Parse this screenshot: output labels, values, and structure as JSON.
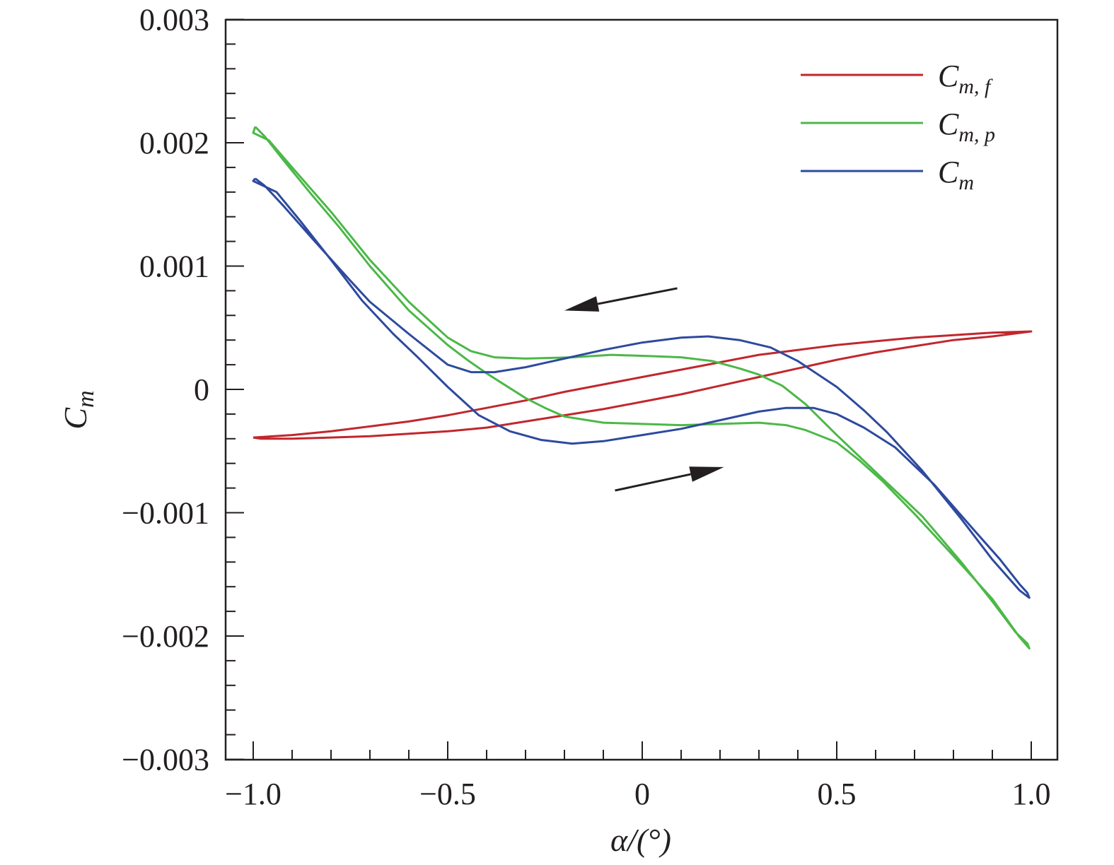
{
  "chart_data": {
    "type": "line",
    "xlabel": "α/(°)",
    "ylabel": "C_m",
    "xlim": [
      -1.1,
      1.05
    ],
    "ylim": [
      -0.003,
      0.003
    ],
    "x_ticks": [
      -1.0,
      -0.5,
      0,
      0.5,
      1.0
    ],
    "x_tick_labels": [
      "−1.0",
      "−0.5",
      "0",
      "0.5",
      "1.0"
    ],
    "y_ticks": [
      -0.003,
      -0.002,
      -0.001,
      0,
      0.001,
      0.002,
      0.003
    ],
    "y_tick_labels": [
      "−0.003",
      "−0.002",
      "−0.001",
      "0",
      "0.001",
      "0.002",
      "0.003"
    ],
    "x_minor_step": 0.1,
    "y_minor_step": 0.0002,
    "grid": false,
    "legend_position": "top-right",
    "legend": [
      {
        "main": "C",
        "sub": "m, f",
        "color": "#c1272d"
      },
      {
        "main": "C",
        "sub": "m, p",
        "color": "#4cb848"
      },
      {
        "main": "C",
        "sub": "m",
        "color": "#2e4a9e"
      }
    ],
    "series": [
      {
        "color": "#c1272d",
        "points": [
          [
            -1.0,
            -0.00039
          ],
          [
            -0.9,
            -0.00037
          ],
          [
            -0.8,
            -0.00034
          ],
          [
            -0.7,
            -0.0003
          ],
          [
            -0.6,
            -0.00026
          ],
          [
            -0.5,
            -0.00021
          ],
          [
            -0.4,
            -0.00015
          ],
          [
            -0.3,
            -9e-05
          ],
          [
            -0.2,
            -2e-05
          ],
          [
            -0.1,
            4e-05
          ],
          [
            0.0,
            0.0001
          ],
          [
            0.1,
            0.00016
          ],
          [
            0.2,
            0.00022
          ],
          [
            0.3,
            0.00028
          ],
          [
            0.4,
            0.00032
          ],
          [
            0.5,
            0.00036
          ],
          [
            0.6,
            0.00039
          ],
          [
            0.7,
            0.00042
          ],
          [
            0.8,
            0.00044
          ],
          [
            0.9,
            0.00046
          ],
          [
            1.0,
            0.00047
          ],
          [
            0.9,
            0.00043
          ],
          [
            0.8,
            0.0004
          ],
          [
            0.7,
            0.00035
          ],
          [
            0.6,
            0.0003
          ],
          [
            0.5,
            0.00024
          ],
          [
            0.4,
            0.00017
          ],
          [
            0.3,
            0.0001
          ],
          [
            0.2,
            3e-05
          ],
          [
            0.1,
            -4e-05
          ],
          [
            0.0,
            -0.0001
          ],
          [
            -0.1,
            -0.00016
          ],
          [
            -0.2,
            -0.00021
          ],
          [
            -0.3,
            -0.00026
          ],
          [
            -0.4,
            -0.00031
          ],
          [
            -0.5,
            -0.00034
          ],
          [
            -0.6,
            -0.00036
          ],
          [
            -0.7,
            -0.00038
          ],
          [
            -0.8,
            -0.00039
          ],
          [
            -0.9,
            -0.0004
          ],
          [
            -0.98,
            -0.0004
          ],
          [
            -1.0,
            -0.00039
          ]
        ]
      },
      {
        "color": "#4cb848",
        "points": [
          [
            -0.995,
            0.00213
          ],
          [
            -0.97,
            0.00205
          ],
          [
            -0.92,
            0.00185
          ],
          [
            -0.85,
            0.00158
          ],
          [
            -0.78,
            0.00132
          ],
          [
            -0.7,
            0.001
          ],
          [
            -0.6,
            0.00064
          ],
          [
            -0.5,
            0.00036
          ],
          [
            -0.45,
            0.00024
          ],
          [
            -0.4,
            0.00013
          ],
          [
            -0.35,
            3e-05
          ],
          [
            -0.3,
            -7e-05
          ],
          [
            -0.25,
            -0.00015
          ],
          [
            -0.2,
            -0.00022
          ],
          [
            -0.1,
            -0.00027
          ],
          [
            0.0,
            -0.00028
          ],
          [
            0.1,
            -0.00029
          ],
          [
            0.2,
            -0.00028
          ],
          [
            0.3,
            -0.00027
          ],
          [
            0.37,
            -0.00029
          ],
          [
            0.42,
            -0.00033
          ],
          [
            0.5,
            -0.00043
          ],
          [
            0.56,
            -0.00058
          ],
          [
            0.62,
            -0.00075
          ],
          [
            0.7,
            -0.00101
          ],
          [
            0.8,
            -0.00135
          ],
          [
            0.9,
            -0.0017
          ],
          [
            0.97,
            -0.00201
          ],
          [
            0.995,
            -0.0021
          ],
          [
            0.99,
            -0.00206
          ],
          [
            0.96,
            -0.00197
          ],
          [
            0.9,
            -0.00172
          ],
          [
            0.82,
            -0.0014
          ],
          [
            0.72,
            -0.00103
          ],
          [
            0.62,
            -0.00073
          ],
          [
            0.56,
            -0.00055
          ],
          [
            0.5,
            -0.00037
          ],
          [
            0.42,
            -0.00012
          ],
          [
            0.36,
            3e-05
          ],
          [
            0.3,
            0.00012
          ],
          [
            0.25,
            0.00017
          ],
          [
            0.18,
            0.00023
          ],
          [
            0.1,
            0.00026
          ],
          [
            0.02,
            0.00027
          ],
          [
            -0.08,
            0.00028
          ],
          [
            -0.18,
            0.00026
          ],
          [
            -0.3,
            0.00025
          ],
          [
            -0.38,
            0.00026
          ],
          [
            -0.44,
            0.00031
          ],
          [
            -0.5,
            0.00042
          ],
          [
            -0.6,
            0.00071
          ],
          [
            -0.7,
            0.00105
          ],
          [
            -0.8,
            0.00144
          ],
          [
            -0.9,
            0.0018
          ],
          [
            -0.96,
            0.00202
          ],
          [
            -1.0,
            0.00208
          ],
          [
            -0.995,
            0.00213
          ]
        ]
      },
      {
        "color": "#2e4a9e",
        "points": [
          [
            -0.995,
            0.00171
          ],
          [
            -0.97,
            0.00165
          ],
          [
            -0.92,
            0.00148
          ],
          [
            -0.85,
            0.00123
          ],
          [
            -0.75,
            0.00088
          ],
          [
            -0.7,
            0.00071
          ],
          [
            -0.6,
            0.00045
          ],
          [
            -0.5,
            0.0002
          ],
          [
            -0.44,
            0.00014
          ],
          [
            -0.38,
            0.00014
          ],
          [
            -0.3,
            0.00018
          ],
          [
            -0.2,
            0.00025
          ],
          [
            -0.1,
            0.00032
          ],
          [
            0.0,
            0.00038
          ],
          [
            0.1,
            0.00042
          ],
          [
            0.17,
            0.00043
          ],
          [
            0.25,
            0.0004
          ],
          [
            0.33,
            0.00034
          ],
          [
            0.4,
            0.00023
          ],
          [
            0.5,
            2e-05
          ],
          [
            0.57,
            -0.00017
          ],
          [
            0.63,
            -0.00035
          ],
          [
            0.72,
            -0.00066
          ],
          [
            0.82,
            -0.00105
          ],
          [
            0.9,
            -0.00138
          ],
          [
            0.97,
            -0.00163
          ],
          [
            0.995,
            -0.00169
          ],
          [
            0.99,
            -0.00165
          ],
          [
            0.97,
            -0.00158
          ],
          [
            0.92,
            -0.00138
          ],
          [
            0.85,
            -0.00113
          ],
          [
            0.75,
            -0.00077
          ],
          [
            0.65,
            -0.00047
          ],
          [
            0.57,
            -0.00031
          ],
          [
            0.5,
            -0.0002
          ],
          [
            0.44,
            -0.00015
          ],
          [
            0.37,
            -0.00015
          ],
          [
            0.3,
            -0.00018
          ],
          [
            0.2,
            -0.00025
          ],
          [
            0.1,
            -0.00032
          ],
          [
            0.0,
            -0.00037
          ],
          [
            -0.1,
            -0.00042
          ],
          [
            -0.18,
            -0.00044
          ],
          [
            -0.26,
            -0.00041
          ],
          [
            -0.34,
            -0.00034
          ],
          [
            -0.42,
            -0.00021
          ],
          [
            -0.5,
            2e-05
          ],
          [
            -0.58,
            0.00027
          ],
          [
            -0.64,
            0.00045
          ],
          [
            -0.72,
            0.00072
          ],
          [
            -0.8,
            0.00105
          ],
          [
            -0.88,
            0.00137
          ],
          [
            -0.94,
            0.0016
          ],
          [
            -1.0,
            0.00169
          ],
          [
            -0.995,
            0.00171
          ]
        ]
      }
    ],
    "arrows": [
      {
        "from": [
          0.09,
          0.00082
        ],
        "to": [
          -0.2,
          0.00064
        ]
      },
      {
        "from": [
          -0.07,
          -0.00082
        ],
        "to": [
          0.21,
          -0.00063
        ]
      }
    ]
  }
}
